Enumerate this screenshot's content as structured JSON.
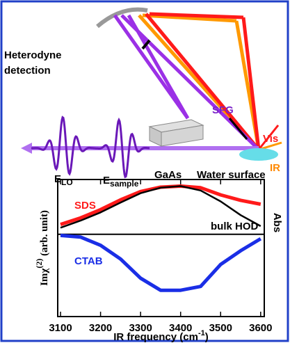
{
  "diagram": {
    "heterodyne": [
      "Heterodyne",
      "detection"
    ],
    "e_lo": {
      "main": "E",
      "sub": "LO"
    },
    "e_sample": {
      "main": "E",
      "sub": "sample"
    },
    "gaas": "GaAs",
    "water": "Water surface",
    "sfg": "SFG",
    "vis": "Vis",
    "ir": "IR"
  },
  "chart_data": {
    "type": "line",
    "xlabel": {
      "text": "IR frequency (cm",
      "sup": "-1",
      "end": ")"
    },
    "ylabel": {
      "text": "Imχ",
      "sup": "(2)",
      "end": " (arb. unit)"
    },
    "y2label": "Abs",
    "x": [
      3100,
      3150,
      3200,
      3250,
      3300,
      3350,
      3400,
      3450,
      3500,
      3550,
      3600
    ],
    "series": [
      {
        "name": "SDS",
        "color": "#ff1a1a",
        "values": [
          0.18,
          0.3,
          0.45,
          0.63,
          0.78,
          0.86,
          0.88,
          0.85,
          0.72,
          0.62,
          0.55
        ]
      },
      {
        "name": "bulk HOD",
        "color": "#000000",
        "axis": "y2",
        "values": [
          0.12,
          0.25,
          0.4,
          0.58,
          0.75,
          0.85,
          0.88,
          0.8,
          0.6,
          0.35,
          0.15
        ]
      },
      {
        "name": "CTAB",
        "color": "#1a2ee6",
        "values": [
          -0.02,
          -0.05,
          -0.2,
          -0.45,
          -0.8,
          -1.02,
          -1.02,
          -0.95,
          -0.55,
          -0.3,
          -0.08
        ]
      }
    ],
    "xlim": [
      3093,
      3609
    ],
    "ylim": [
      -1.5,
      1
    ],
    "y2lim": [
      -1.5,
      1
    ],
    "xticks": [
      3100,
      3200,
      3300,
      3400,
      3500,
      3600
    ]
  }
}
